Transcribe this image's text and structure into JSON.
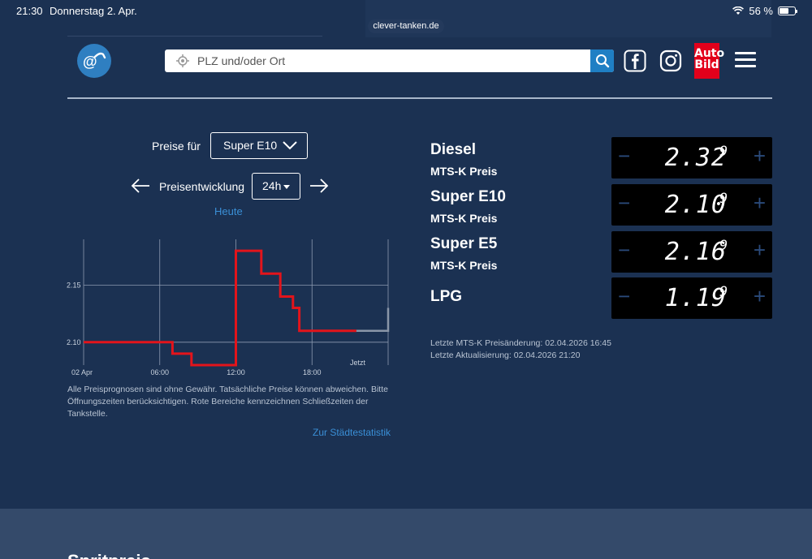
{
  "status_bar": {
    "time": "21:30",
    "date": "Donnerstag 2. Apr.",
    "battery": "56 %",
    "battery_level": 0.56
  },
  "browser": {
    "url": "clever-tanken.de"
  },
  "header": {
    "search_placeholder": "PLZ und/oder Ort",
    "brand_logo": "@",
    "autobild_line1": "Auto",
    "autobild_line2": "Bild",
    "icons": [
      "location-icon",
      "search-icon",
      "facebook-icon",
      "instagram-icon",
      "menu-icon"
    ]
  },
  "left": {
    "preise_fuer_label": "Preise für",
    "fuel_select": "Super E10",
    "preisentwicklung_label": "Preisentwicklung",
    "range_select": "24h",
    "heute": "Heute",
    "disclaimer": "Alle Preisprognosen sind ohne Gewähr. Tatsächliche Preise können abweichen. Bitte Öffnungszeiten berücksichtigen. Rote Bereiche kennzeichnen Schließzeiten der Tankstelle.",
    "staedte_link": "Zur Städtestatistik"
  },
  "chart_data": {
    "type": "line",
    "xlabel": "",
    "ylabel": "",
    "x_ticks": [
      "02 Apr",
      "06:00",
      "12:00",
      "18:00",
      "Jetzt"
    ],
    "y_ticks": [
      2.1,
      2.15
    ],
    "ylim": [
      2.08,
      2.19
    ],
    "xlim_hours": [
      0,
      24
    ],
    "grid": true,
    "series": [
      {
        "color": "#e3141b",
        "points": [
          [
            0,
            2.1
          ],
          [
            7,
            2.1
          ],
          [
            7,
            2.09
          ],
          [
            8.5,
            2.09
          ],
          [
            8.5,
            2.08
          ],
          [
            12,
            2.08
          ],
          [
            12,
            2.18
          ],
          [
            14,
            2.18
          ],
          [
            14,
            2.16
          ],
          [
            15.5,
            2.16
          ],
          [
            15.5,
            2.14
          ],
          [
            16.5,
            2.14
          ],
          [
            16.5,
            2.13
          ],
          [
            17,
            2.13
          ],
          [
            17,
            2.11
          ],
          [
            21.5,
            2.11
          ]
        ]
      },
      {
        "color": "#8a96a8",
        "points": [
          [
            21.5,
            2.11
          ],
          [
            24,
            2.11
          ],
          [
            24,
            2.13
          ]
        ]
      }
    ]
  },
  "prices": [
    {
      "name": "Diesel",
      "sub": "MTS-K Preis",
      "main": "2.32",
      "sup": "9"
    },
    {
      "name": "Super E10",
      "sub": "MTS-K Preis",
      "main": "2.10",
      "sup": "9"
    },
    {
      "name": "Super E5",
      "sub": "MTS-K Preis",
      "main": "2.16",
      "sup": "9"
    },
    {
      "name": "LPG",
      "sub": "",
      "main": "1.19",
      "sup": "9"
    }
  ],
  "price_controls": {
    "minus": "−",
    "plus": "+"
  },
  "meta": {
    "last_change": "Letzte MTS-K Preisänderung: 02.04.2026 16:45",
    "last_update": "Letzte Aktualisierung: 02.04.2026 21:20"
  },
  "bottom": {
    "heading": "Spritpreis"
  },
  "colors": {
    "background": "#1b3152",
    "accent": "#1f7fc4",
    "link": "#3a8fd6",
    "chart_line": "#e3141b"
  }
}
